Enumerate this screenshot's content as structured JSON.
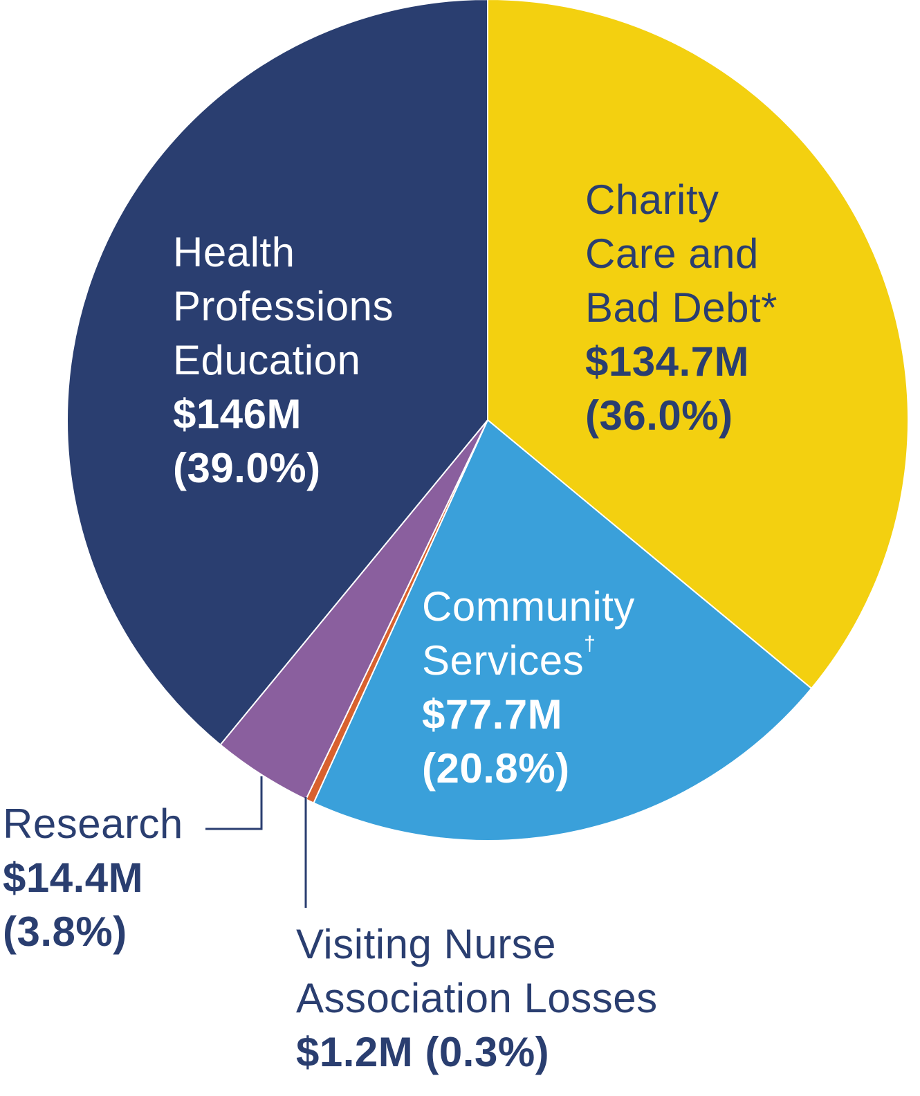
{
  "chart_data": {
    "type": "pie",
    "start_angle_deg": 0,
    "direction": "clockwise",
    "slices": [
      {
        "label": "Charity Care and Bad Debt*",
        "value": 134.7,
        "value_label": "$134.7M",
        "percent": 36.0,
        "percent_label": "(36.0%)",
        "color": "#f3d010"
      },
      {
        "label": "Community Services†",
        "value": 77.7,
        "value_label": "$77.7M",
        "percent": 20.8,
        "percent_label": "(20.8%)",
        "color": "#3aa0da"
      },
      {
        "label": "Visiting Nurse Association Losses",
        "value": 1.2,
        "value_label": "$1.2M",
        "percent": 0.3,
        "percent_label": "(0.3%)",
        "color": "#d8612e"
      },
      {
        "label": "Research",
        "value": 14.4,
        "value_label": "$14.4M",
        "percent": 3.8,
        "percent_label": "(3.8%)",
        "color": "#8a5f9e"
      },
      {
        "label": "Health Professions Education",
        "value": 146,
        "value_label": "$146M",
        "percent": 39.0,
        "percent_label": "(39.0%)",
        "color": "#2a3e70"
      }
    ]
  },
  "labels": {
    "health": {
      "line1": "Health",
      "line2": "Professions",
      "line3": "Education",
      "value": "$146M",
      "percent": "(39.0%)"
    },
    "charity": {
      "line1": "Charity",
      "line2": "Care and",
      "line3": "Bad Debt*",
      "value": "$134.7M",
      "percent": "(36.0%)"
    },
    "community": {
      "line1": "Community",
      "line2": "Services",
      "mark": "†",
      "value": "$77.7M",
      "percent": "(20.8%)"
    },
    "research": {
      "line1": "Research",
      "value": "$14.4M",
      "percent": "(3.8%)"
    },
    "vna": {
      "line1": "Visiting Nurse",
      "line2": "Association Losses",
      "value": "$1.2M",
      "percent": "(0.3%)"
    }
  },
  "colors": {
    "leader_line": "#2a3e70",
    "slice_border": "#ffffff"
  }
}
